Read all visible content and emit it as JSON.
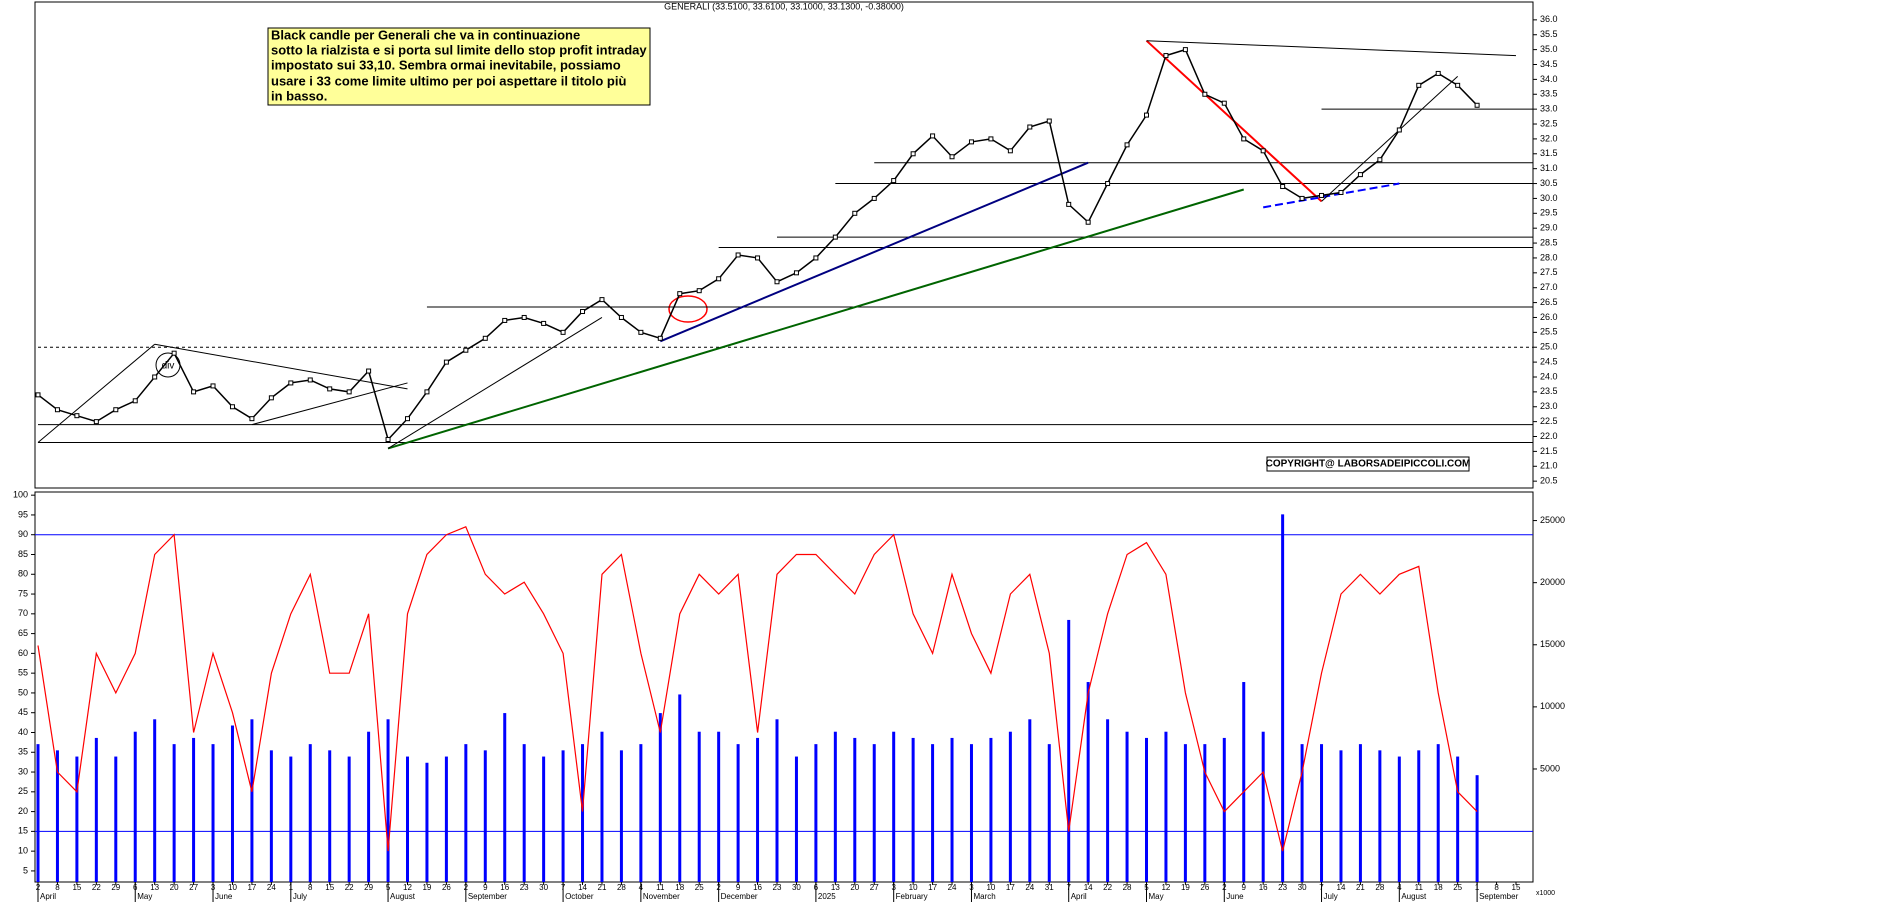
{
  "chart_data": {
    "type": "line",
    "title": "GENERALI (33.5100, 33.6100, 33.1000, 33.1300, -0.38000)",
    "annotation": [
      "Black candle per Generali che va in continuazione",
      "sotto la rialzista e si porta sul limite dello stop profit intraday",
      "impostato sui 33,10. Sembra ormai inevitabile, possiamo",
      "usare i 33 come limite ultimo  per poi aspettare il titolo più",
      "in basso."
    ],
    "copyright": "COPYRIGHT@ LABORSADEIPICCOLI.COM",
    "div_label": "div",
    "volume_unit": "x1000",
    "xlim": [
      0,
      76
    ],
    "xticks": [
      {
        "value": 0,
        "label": "2"
      },
      {
        "value": 1,
        "label": "8"
      },
      {
        "value": 2,
        "label": "15"
      },
      {
        "value": 3,
        "label": "22"
      },
      {
        "value": 4,
        "label": "29"
      },
      {
        "value": 5,
        "label": "6"
      },
      {
        "value": 6,
        "label": "13"
      },
      {
        "value": 7,
        "label": "20"
      },
      {
        "value": 8,
        "label": "27"
      },
      {
        "value": 9,
        "label": "3"
      },
      {
        "value": 10,
        "label": "10"
      },
      {
        "value": 11,
        "label": "17"
      },
      {
        "value": 12,
        "label": "24"
      },
      {
        "value": 13,
        "label": "1"
      },
      {
        "value": 14,
        "label": "8"
      },
      {
        "value": 15,
        "label": "15"
      },
      {
        "value": 16,
        "label": "22"
      },
      {
        "value": 17,
        "label": "29"
      },
      {
        "value": 18,
        "label": "5"
      },
      {
        "value": 19,
        "label": "12"
      },
      {
        "value": 20,
        "label": "19"
      },
      {
        "value": 21,
        "label": "26"
      },
      {
        "value": 22,
        "label": "2"
      },
      {
        "value": 23,
        "label": "9"
      },
      {
        "value": 24,
        "label": "16"
      },
      {
        "value": 25,
        "label": "23"
      },
      {
        "value": 26,
        "label": "30"
      },
      {
        "value": 27,
        "label": "7"
      },
      {
        "value": 28,
        "label": "14"
      },
      {
        "value": 29,
        "label": "21"
      },
      {
        "value": 30,
        "label": "28"
      },
      {
        "value": 31,
        "label": "4"
      },
      {
        "value": 32,
        "label": "11"
      },
      {
        "value": 33,
        "label": "18"
      },
      {
        "value": 34,
        "label": "25"
      },
      {
        "value": 35,
        "label": "2"
      },
      {
        "value": 36,
        "label": "9"
      },
      {
        "value": 37,
        "label": "16"
      },
      {
        "value": 38,
        "label": "23"
      },
      {
        "value": 39,
        "label": "30"
      },
      {
        "value": 40,
        "label": "6"
      },
      {
        "value": 41,
        "label": "13"
      },
      {
        "value": 42,
        "label": "20"
      },
      {
        "value": 43,
        "label": "27"
      },
      {
        "value": 44,
        "label": "3"
      },
      {
        "value": 45,
        "label": "10"
      },
      {
        "value": 46,
        "label": "17"
      },
      {
        "value": 47,
        "label": "24"
      },
      {
        "value": 48,
        "label": "3"
      },
      {
        "value": 49,
        "label": "10"
      },
      {
        "value": 50,
        "label": "17"
      },
      {
        "value": 51,
        "label": "24"
      },
      {
        "value": 52,
        "label": "31"
      },
      {
        "value": 53,
        "label": "7"
      },
      {
        "value": 54,
        "label": "14"
      },
      {
        "value": 55,
        "label": "22"
      },
      {
        "value": 56,
        "label": "28"
      },
      {
        "value": 57,
        "label": "5"
      },
      {
        "value": 58,
        "label": "12"
      },
      {
        "value": 59,
        "label": "19"
      },
      {
        "value": 60,
        "label": "26"
      },
      {
        "value": 61,
        "label": "2"
      },
      {
        "value": 62,
        "label": "9"
      },
      {
        "value": 63,
        "label": "16"
      },
      {
        "value": 64,
        "label": "23"
      },
      {
        "value": 65,
        "label": "30"
      },
      {
        "value": 66,
        "label": "7"
      },
      {
        "value": 67,
        "label": "14"
      },
      {
        "value": 68,
        "label": "21"
      },
      {
        "value": 69,
        "label": "28"
      },
      {
        "value": 70,
        "label": "4"
      },
      {
        "value": 71,
        "label": "11"
      },
      {
        "value": 72,
        "label": "18"
      },
      {
        "value": 73,
        "label": "25"
      },
      {
        "value": 74,
        "label": "1"
      },
      {
        "value": 75,
        "label": "8"
      },
      {
        "value": 76,
        "label": "15"
      }
    ],
    "months": [
      {
        "value": 0,
        "label": "April"
      },
      {
        "value": 5,
        "label": "May"
      },
      {
        "value": 9,
        "label": "June"
      },
      {
        "value": 13,
        "label": "July"
      },
      {
        "value": 18,
        "label": "August"
      },
      {
        "value": 22,
        "label": "September"
      },
      {
        "value": 27,
        "label": "October"
      },
      {
        "value": 31,
        "label": "November"
      },
      {
        "value": 35,
        "label": "December"
      },
      {
        "value": 40,
        "label": "2025"
      },
      {
        "value": 44,
        "label": "February"
      },
      {
        "value": 48,
        "label": "March"
      },
      {
        "value": 53,
        "label": "April"
      },
      {
        "value": 57,
        "label": "May"
      },
      {
        "value": 61,
        "label": "June"
      },
      {
        "value": 66,
        "label": "July"
      },
      {
        "value": 70,
        "label": "August"
      },
      {
        "value": 74,
        "label": "September"
      }
    ],
    "price": {
      "color": "#000000",
      "ylim": [
        20.27,
        36.6
      ],
      "yticks": [
        {
          "value": 20.5,
          "label": "20.5"
        },
        {
          "value": 21,
          "label": "21.0"
        },
        {
          "value": 21.5,
          "label": "21.5"
        },
        {
          "value": 22,
          "label": "22.0"
        },
        {
          "value": 22.5,
          "label": "22.5"
        },
        {
          "value": 23,
          "label": "23.0"
        },
        {
          "value": 23.5,
          "label": "23.5"
        },
        {
          "value": 24,
          "label": "24.0"
        },
        {
          "value": 24.5,
          "label": "24.5"
        },
        {
          "value": 25,
          "label": "25.0"
        },
        {
          "value": 25.5,
          "label": "25.5"
        },
        {
          "value": 26,
          "label": "26.0"
        },
        {
          "value": 26.5,
          "label": "26.5"
        },
        {
          "value": 27,
          "label": "27.0"
        },
        {
          "value": 27.5,
          "label": "27.5"
        },
        {
          "value": 28,
          "label": "28.0"
        },
        {
          "value": 28.5,
          "label": "28.5"
        },
        {
          "value": 29,
          "label": "29.0"
        },
        {
          "value": 29.5,
          "label": "29.5"
        },
        {
          "value": 30,
          "label": "30.0"
        },
        {
          "value": 30.5,
          "label": "30.5"
        },
        {
          "value": 31,
          "label": "31.0"
        },
        {
          "value": 31.5,
          "label": "31.5"
        },
        {
          "value": 32,
          "label": "32.0"
        },
        {
          "value": 32.5,
          "label": "32.5"
        },
        {
          "value": 33,
          "label": "33.0"
        },
        {
          "value": 33.5,
          "label": "33.5"
        },
        {
          "value": 34,
          "label": "34.0"
        },
        {
          "value": 34.5,
          "label": "34.5"
        },
        {
          "value": 35,
          "label": "35.0"
        },
        {
          "value": 35.5,
          "label": "35.5"
        },
        {
          "value": 36,
          "label": "36.0"
        }
      ],
      "values": [
        23.4,
        22.9,
        22.7,
        22.5,
        22.9,
        23.2,
        24.0,
        24.8,
        23.5,
        23.7,
        23.0,
        22.6,
        23.3,
        23.8,
        23.9,
        23.6,
        23.5,
        24.2,
        21.9,
        22.6,
        23.5,
        24.5,
        24.9,
        25.3,
        25.9,
        26.0,
        25.8,
        25.5,
        26.2,
        26.6,
        26.0,
        25.5,
        25.3,
        26.8,
        26.9,
        27.3,
        28.1,
        28.0,
        27.2,
        27.5,
        28.0,
        28.7,
        29.5,
        30.0,
        30.6,
        31.5,
        32.1,
        31.4,
        31.9,
        32.0,
        31.6,
        32.4,
        32.6,
        29.8,
        29.2,
        30.5,
        31.8,
        32.8,
        34.8,
        35.0,
        33.5,
        33.2,
        32.0,
        31.6,
        30.4,
        30.0,
        30.1,
        30.2,
        30.8,
        31.3,
        32.3,
        33.8,
        34.2,
        33.8,
        33.13
      ],
      "levels": [
        {
          "value": 33.0,
          "from": 66
        },
        {
          "value": 31.2,
          "from": 43
        },
        {
          "value": 30.5,
          "from": 41
        },
        {
          "value": 28.7,
          "from": 38
        },
        {
          "value": 28.35,
          "from": 35
        },
        {
          "value": 26.35,
          "from": 20
        },
        {
          "value": 25.0,
          "from": 0,
          "dashed": true
        },
        {
          "value": 22.4,
          "from": 0
        },
        {
          "value": 21.8,
          "from": 0
        }
      ],
      "trendlines": [
        {
          "x": [
            18,
            62
          ],
          "y": [
            21.6,
            30.3
          ],
          "color": "#006400"
        },
        {
          "x": [
            32,
            54
          ],
          "y": [
            25.2,
            31.2
          ],
          "color": "#000080"
        },
        {
          "x": [
            57,
            66
          ],
          "y": [
            35.3,
            29.9
          ],
          "color": "#ff0000"
        },
        {
          "x": [
            57,
            76
          ],
          "y": [
            35.3,
            34.8
          ],
          "color": "#000000"
        },
        {
          "x": [
            63,
            70
          ],
          "y": [
            29.7,
            30.5
          ],
          "color": "#0000ff",
          "dashed": true
        },
        {
          "x": [
            66,
            73
          ],
          "y": [
            29.9,
            34.1
          ],
          "color": "#000000"
        },
        {
          "x": [
            0,
            6
          ],
          "y": [
            21.8,
            25.1
          ],
          "color": "#000000"
        },
        {
          "x": [
            6,
            19
          ],
          "y": [
            25.1,
            23.6
          ],
          "color": "#000000"
        },
        {
          "x": [
            11,
            19
          ],
          "y": [
            22.4,
            23.8
          ],
          "color": "#000000"
        },
        {
          "x": [
            18,
            29
          ],
          "y": [
            21.6,
            26.0
          ],
          "color": "#000000"
        }
      ]
    },
    "oscillator": {
      "color": "#ff0000",
      "ylim": [
        2.2,
        100.8
      ],
      "yticks": [
        5,
        10,
        15,
        20,
        25,
        30,
        35,
        40,
        45,
        50,
        55,
        60,
        65,
        70,
        75,
        80,
        85,
        90,
        95,
        100
      ],
      "hlines": [
        90,
        15
      ],
      "values": [
        62,
        30,
        25,
        60,
        50,
        60,
        85,
        90,
        40,
        60,
        45,
        25,
        55,
        70,
        80,
        55,
        55,
        70,
        10,
        70,
        85,
        90,
        92,
        80,
        75,
        78,
        70,
        60,
        20,
        80,
        85,
        60,
        40,
        70,
        80,
        75,
        80,
        40,
        80,
        85,
        85,
        80,
        75,
        85,
        90,
        70,
        60,
        80,
        65,
        55,
        75,
        80,
        60,
        15,
        50,
        70,
        85,
        88,
        80,
        50,
        30,
        20,
        25,
        30,
        10,
        30,
        55,
        75,
        80,
        75,
        80,
        82,
        50,
        25,
        20
      ]
    },
    "volume": {
      "color": "#0000ff",
      "ylim": [
        -4100,
        27300
      ],
      "yticks": [
        5000,
        10000,
        15000,
        20000,
        25000
      ],
      "values": [
        7000,
        6500,
        6000,
        7500,
        6000,
        8000,
        9000,
        7000,
        7500,
        7000,
        8500,
        9000,
        6500,
        6000,
        7000,
        6500,
        6000,
        8000,
        9000,
        6000,
        5500,
        6000,
        7000,
        6500,
        9500,
        7000,
        6000,
        6500,
        7000,
        8000,
        6500,
        7000,
        9500,
        11000,
        8000,
        8000,
        7000,
        7500,
        9000,
        6000,
        7000,
        8000,
        7500,
        7000,
        8000,
        7500,
        7000,
        7500,
        7000,
        7500,
        8000,
        9000,
        7000,
        17000,
        12000,
        9000,
        8000,
        7500,
        8000,
        7000,
        7000,
        7500,
        12000,
        8000,
        25500,
        7000,
        7000,
        6500,
        7000,
        6500,
        6000,
        6500,
        7000,
        6000,
        4500
      ]
    }
  }
}
